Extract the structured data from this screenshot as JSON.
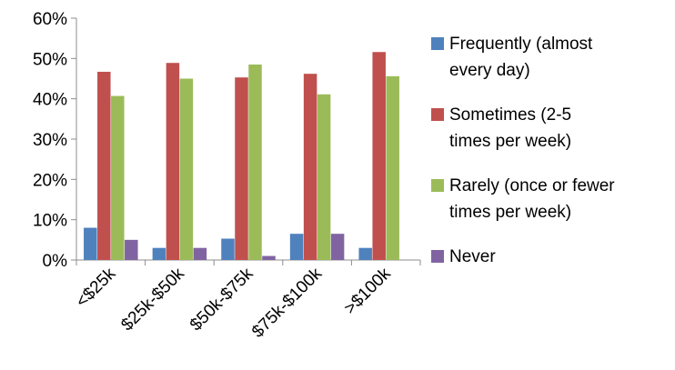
{
  "chart_data": {
    "type": "bar",
    "categories": [
      "<$25k",
      "$25k-$50k",
      "$50k-$75k",
      "$75k-$100k",
      ">$100k"
    ],
    "series": [
      {
        "name": "Frequently (almost every day)",
        "color": "#4f81bd",
        "values": [
          8,
          3,
          5.3,
          6.5,
          3
        ]
      },
      {
        "name": "Sometimes (2-5 times per week)",
        "color": "#c0504d",
        "values": [
          46.7,
          48.9,
          45.3,
          46.2,
          51.6
        ]
      },
      {
        "name": "Rarely (once or fewer times per week)",
        "color": "#9bbb59",
        "values": [
          40.7,
          45,
          48.5,
          41.1,
          45.6
        ]
      },
      {
        "name": "Never",
        "color": "#8064a2",
        "values": [
          5,
          3,
          1,
          6.5,
          0
        ]
      }
    ],
    "y_ticks": [
      "0%",
      "10%",
      "20%",
      "30%",
      "40%",
      "50%",
      "60%"
    ],
    "ylim": [
      0,
      60
    ],
    "grid": false,
    "legend_position": "right",
    "title": "",
    "xlabel": "",
    "ylabel": ""
  },
  "legend": {
    "items": [
      {
        "line1": "Frequently (almost",
        "line2": "every day)"
      },
      {
        "line1": "Sometimes (2-5",
        "line2": "times per week)"
      },
      {
        "line1": "Rarely (once or fewer",
        "line2": "times per week)"
      },
      {
        "line1": "Never",
        "line2": ""
      }
    ]
  }
}
